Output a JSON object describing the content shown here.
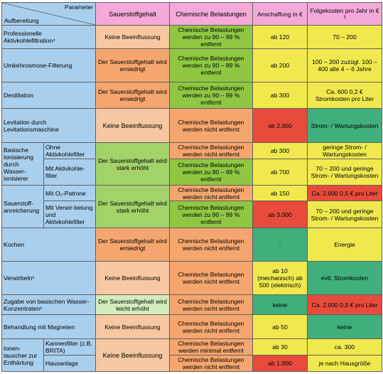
{
  "header": {
    "parameter": "Parameter",
    "aufbereitung": "Aufbereitung",
    "sauerstoff": "Sauerstoffgehalt",
    "chem": "Chemische Belastungen",
    "anschaffung": "Anschaffung in €",
    "folgekosten": "Folgekosten pro Jahr in € ³"
  },
  "colors": {
    "blue": "#a9cfee",
    "pink": "#f4a9d8",
    "orange": "#f4a66e",
    "peach": "#f6c7a0",
    "light_green": "#a3d16a",
    "green": "#8fc742",
    "pale_green": "#d4ecbd",
    "yellow": "#f0e94e",
    "red": "#e84b3b",
    "teal_green": "#3fb07c"
  },
  "rows": {
    "aktivkohle": {
      "name": "Professionelle Aktivkohlefiltration⁴",
      "o2": "Keine Beeinflussung",
      "chem": "Chemische Belastungen werden zu 90 – 99 % entfernt",
      "cost": "ab 120",
      "follow": "70 – 200"
    },
    "umkehrosmose": {
      "name": "Umkehrosmose-Filterung",
      "o2": "Der Sauerstoffgehalt wird erniedrigt",
      "chem": "Chemische Belastungen werden zu 90 – 99 % entfernt",
      "cost": "ab 200",
      "follow": "100 – 200 zuzügl. 100 – 400 alle 4 – 6 Jahre"
    },
    "destillation": {
      "name": "Destillation",
      "o2": "Der Sauerstoffgehalt wird erniedrigt",
      "chem": "Chemische Belastungen werden zu 90 – 99 % entfernt",
      "cost": "ab 300",
      "follow": "Ca. 600 0,2 € Stromkosten pro Liter"
    },
    "levitation": {
      "name": "Levitation durch Levitationsmaschine",
      "o2": "Keine Beeinflussung",
      "chem": "Chemische Belastungen werden nicht entfernt",
      "cost": "ab 2.000",
      "follow": "Strom- / Wartungskosten"
    },
    "ionisierer": {
      "name": "Basische Ionisierung durch Wasser-ionisierer",
      "o2": "Der Sauerstoffgehalt wird stark erhöht",
      "sub1": {
        "name": "Ohne Aktivkohlefilter",
        "chem": "Chemische Belastungen werden nicht entfernt",
        "cost": "ab 300",
        "follow": "geringe Strom- / Wartungskosten"
      },
      "sub2": {
        "name": "Mit Aktivkohle-filter",
        "chem": "Chemische Belastungen werden zu 90 – 99 % entfernt",
        "cost": "ab 700",
        "follow": "70 – 200 und geringe Strom- / Wartungskosten"
      }
    },
    "sauerstoffanreicherung": {
      "name": "Sauerstoff-anreicherung",
      "o2": "Der Sauerstoffgehalt wird stark erhöht",
      "sub1": {
        "name": "Mit O₂-Patrone",
        "chem": "Chemische Belastungen werden nicht entfernt",
        "cost": "ab 150",
        "follow": "Ca. 2.000 0,5 € pro Liter"
      },
      "sub2": {
        "name": "Mit Verwir-belung und Aktivkohlefilter",
        "chem": "Chemische Belastungen werden zu 90 – 99 % entfernt",
        "cost": "ab 3.000",
        "follow": "70 – 200 und geringe Strom- / Wartungskosten"
      }
    },
    "kochen": {
      "name": "Kochen",
      "o2": "Der Sauerstoffgehalt wird erniedrigt",
      "chem": "Chemische Belastungen werden nicht entfernt",
      "cost": "-",
      "follow": "Energie"
    },
    "verwirbeln": {
      "name": "Verwirbeln⁵",
      "o2": "Keine Beeinflussung",
      "chem": "Chemische Belastungen werden nicht entfernt",
      "cost": "ab 10 (mechanisch) ab 500 (elektrisch)",
      "follow": "evtl. Stromkosten"
    },
    "konzentrate": {
      "name": "Zugabe von basischen Wasser-Konzentraten⁶",
      "o2": "Der Sauerstoffgehalt wird leicht erhöht",
      "chem": "Chemische Belastungen werden nicht entfernt",
      "cost": "keine",
      "follow": "Ca. 2.000 0,5 € pro Liter"
    },
    "magneten": {
      "name": "Behandlung mit Magneten",
      "o2": "Keine Beeinflussung",
      "chem": "Chemische Belastungen werden nicht entfernt",
      "cost": "ab 50",
      "follow": "keine"
    },
    "ionentauscher": {
      "name": "Ionen-tauscher zur Enthärtung",
      "o2": "Keine Beeinflussung",
      "sub1": {
        "name": "Kannenfilter (z.B. BRITA)",
        "chem": "Chemische Belastungen werden minimal entfernt",
        "cost": "ab 30",
        "follow": "ca. 300"
      },
      "sub2": {
        "name": "Hausanlage",
        "chem": "Chemische Belastungen werden nicht entfernt",
        "cost": "ab 1.000",
        "follow": "je nach Hausgröße"
      }
    }
  }
}
